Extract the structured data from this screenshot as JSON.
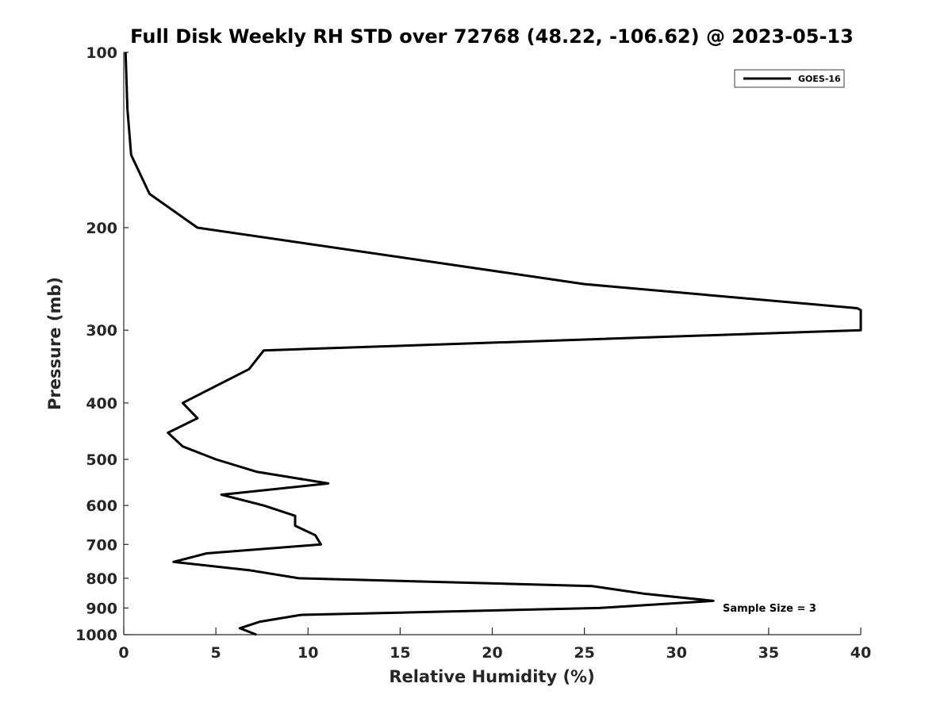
{
  "chart_data": {
    "type": "line",
    "title": "Full Disk Weekly RH STD over 72768 (48.22, -106.62) @ 2023-05-13",
    "xlabel": "Relative Humidity (%)",
    "ylabel": "Pressure (mb)",
    "xlim": [
      0,
      40
    ],
    "ylim": [
      100,
      1000
    ],
    "y_scale": "log",
    "y_reversed": true,
    "grid": false,
    "legend_position": "top-right",
    "x_ticks": [
      0,
      5,
      10,
      15,
      20,
      25,
      30,
      35,
      40
    ],
    "y_ticks": [
      100,
      200,
      300,
      400,
      500,
      600,
      700,
      800,
      900,
      1000
    ],
    "annotation": "Sample Size = 3",
    "series": [
      {
        "name": "GOES-16",
        "color": "#000000",
        "points": [
          {
            "x": 0.1,
            "p": 100
          },
          {
            "x": 0.2,
            "p": 125
          },
          {
            "x": 0.4,
            "p": 150
          },
          {
            "x": 1.4,
            "p": 175
          },
          {
            "x": 4.0,
            "p": 200
          },
          {
            "x": 25.0,
            "p": 250
          },
          {
            "x": 39.8,
            "p": 275
          },
          {
            "x": 40.0,
            "p": 277
          },
          {
            "x": 40.0,
            "p": 300
          },
          {
            "x": 7.6,
            "p": 325
          },
          {
            "x": 6.8,
            "p": 350
          },
          {
            "x": 3.2,
            "p": 400
          },
          {
            "x": 4.0,
            "p": 425
          },
          {
            "x": 2.4,
            "p": 450
          },
          {
            "x": 3.2,
            "p": 475
          },
          {
            "x": 5.0,
            "p": 500
          },
          {
            "x": 7.2,
            "p": 525
          },
          {
            "x": 11.1,
            "p": 550
          },
          {
            "x": 5.3,
            "p": 575
          },
          {
            "x": 7.6,
            "p": 600
          },
          {
            "x": 9.3,
            "p": 625
          },
          {
            "x": 9.3,
            "p": 650
          },
          {
            "x": 10.4,
            "p": 675
          },
          {
            "x": 10.7,
            "p": 700
          },
          {
            "x": 4.5,
            "p": 725
          },
          {
            "x": 2.7,
            "p": 750
          },
          {
            "x": 6.8,
            "p": 775
          },
          {
            "x": 9.5,
            "p": 800
          },
          {
            "x": 25.4,
            "p": 825
          },
          {
            "x": 28.2,
            "p": 850
          },
          {
            "x": 32.0,
            "p": 875
          },
          {
            "x": 25.8,
            "p": 900
          },
          {
            "x": 9.6,
            "p": 925
          },
          {
            "x": 7.4,
            "p": 950
          },
          {
            "x": 6.3,
            "p": 975
          },
          {
            "x": 7.2,
            "p": 1000
          }
        ]
      }
    ]
  }
}
